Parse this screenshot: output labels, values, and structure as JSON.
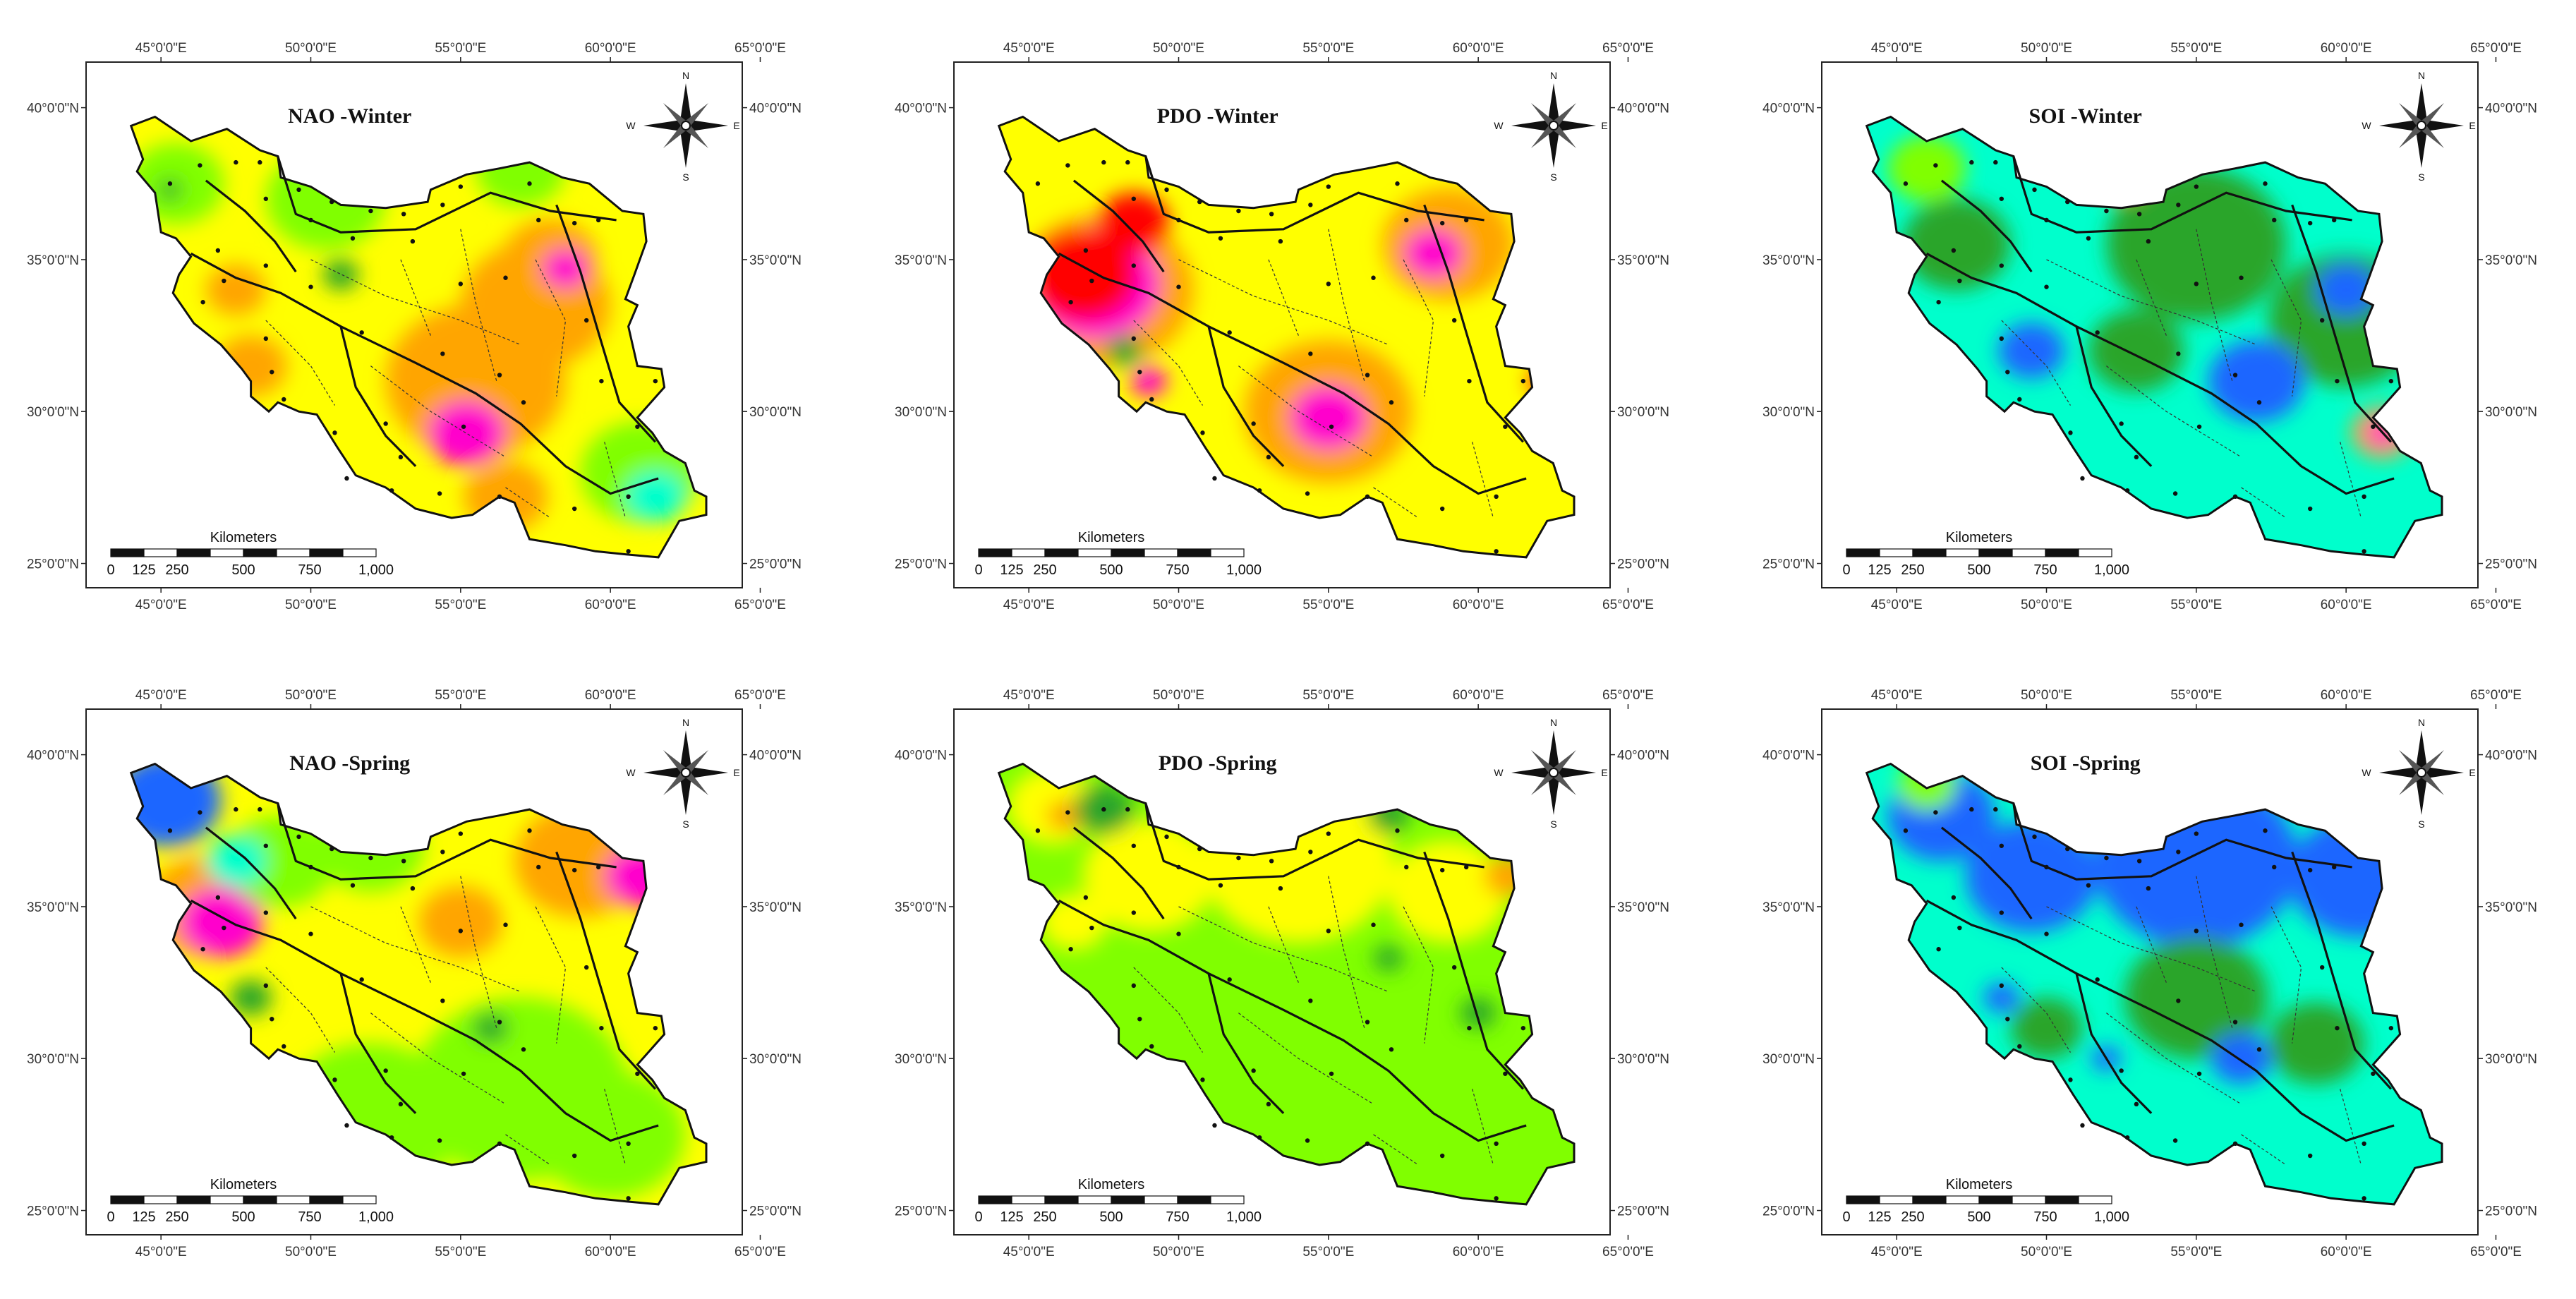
{
  "map_data": {
    "type": "choropleth-maps",
    "region": "Iran",
    "lon_ticks": [
      "45°0'0\"E",
      "50°0'0\"E",
      "55°0'0\"E",
      "60°0'0\"E",
      "65°0'0\"E"
    ],
    "lat_ticks": [
      "40°0'0\"N",
      "35°0'0\"N",
      "30°0'0\"N",
      "25°0'0\"N"
    ],
    "scale_bar": {
      "unit": "Kilometers",
      "ticks": [
        "0",
        "125",
        "250",
        "500",
        "750",
        "1,000"
      ]
    },
    "north_arrow": {
      "N": "N",
      "E": "E",
      "S": "S",
      "W": "W"
    },
    "colors": {
      "red": "#ff0000",
      "magenta": "#ff00cc",
      "orange": "#ffa500",
      "yellow": "#ffff00",
      "light_green": "#80ff00",
      "green": "#2aa52a",
      "cyan": "#00ffcc",
      "blue": "#1a66ff"
    },
    "panels": [
      {
        "title": "NAO -Winter",
        "base_color": "#ffff00",
        "blobs": [
          {
            "lon": 55.5,
            "lat": 31.0,
            "r": 3.0,
            "c": "#ffa500"
          },
          {
            "lon": 57.5,
            "lat": 33.5,
            "r": 2.5,
            "c": "#ffa500"
          },
          {
            "lon": 58.0,
            "lat": 35.0,
            "r": 1.6,
            "c": "#ffa500"
          },
          {
            "lon": 55.2,
            "lat": 29.3,
            "r": 1.3,
            "c": "#ff00cc"
          },
          {
            "lon": 58.5,
            "lat": 34.7,
            "r": 0.8,
            "c": "#ff00cc"
          },
          {
            "lon": 56.5,
            "lat": 27.2,
            "r": 1.4,
            "c": "#ffa500"
          },
          {
            "lon": 47.5,
            "lat": 34.0,
            "r": 1.0,
            "c": "#ffa500"
          },
          {
            "lon": 48.0,
            "lat": 31.5,
            "r": 1.2,
            "c": "#ffa500"
          },
          {
            "lon": 45.5,
            "lat": 37.5,
            "r": 1.6,
            "c": "#80ff00"
          },
          {
            "lon": 50.5,
            "lat": 37.0,
            "r": 2.0,
            "c": "#80ff00"
          },
          {
            "lon": 57.0,
            "lat": 38.0,
            "r": 1.5,
            "c": "#80ff00"
          },
          {
            "lon": 61.0,
            "lat": 28.0,
            "r": 2.0,
            "c": "#80ff00"
          },
          {
            "lon": 61.5,
            "lat": 27.2,
            "r": 1.0,
            "c": "#00ffcc"
          },
          {
            "lon": 51.0,
            "lat": 34.5,
            "r": 0.6,
            "c": "#2aa52a"
          },
          {
            "lon": 45.3,
            "lat": 37.3,
            "r": 0.4,
            "c": "#2aa52a"
          }
        ]
      },
      {
        "title": "PDO -Winter",
        "base_color": "#ffff00",
        "blobs": [
          {
            "lon": 47.5,
            "lat": 34.0,
            "r": 3.0,
            "c": "#ffa500"
          },
          {
            "lon": 55.0,
            "lat": 30.0,
            "r": 2.8,
            "c": "#ffa500"
          },
          {
            "lon": 59.0,
            "lat": 35.5,
            "r": 2.2,
            "c": "#ffa500"
          },
          {
            "lon": 47.2,
            "lat": 34.2,
            "r": 2.2,
            "c": "#ff00cc"
          },
          {
            "lon": 46.8,
            "lat": 34.5,
            "r": 1.8,
            "c": "#ff0000"
          },
          {
            "lon": 48.5,
            "lat": 36.2,
            "r": 1.2,
            "c": "#ff0000"
          },
          {
            "lon": 55.0,
            "lat": 29.8,
            "r": 1.3,
            "c": "#ff00cc"
          },
          {
            "lon": 58.5,
            "lat": 35.2,
            "r": 1.0,
            "c": "#ff00cc"
          },
          {
            "lon": 49.0,
            "lat": 31.0,
            "r": 0.6,
            "c": "#ff00cc"
          },
          {
            "lon": 62.2,
            "lat": 31.0,
            "r": 0.5,
            "c": "#ff0000"
          },
          {
            "lon": 48.2,
            "lat": 32.0,
            "r": 0.6,
            "c": "#2aa52a"
          }
        ]
      },
      {
        "title": "SOI -Winter",
        "base_color": "#00ffcc",
        "blobs": [
          {
            "lon": 55.0,
            "lat": 35.5,
            "r": 3.0,
            "c": "#2aa52a"
          },
          {
            "lon": 60.0,
            "lat": 33.0,
            "r": 2.6,
            "c": "#2aa52a"
          },
          {
            "lon": 47.0,
            "lat": 35.5,
            "r": 1.8,
            "c": "#2aa52a"
          },
          {
            "lon": 53.0,
            "lat": 32.0,
            "r": 1.6,
            "c": "#2aa52a"
          },
          {
            "lon": 57.0,
            "lat": 31.0,
            "r": 1.6,
            "c": "#1a66ff"
          },
          {
            "lon": 49.5,
            "lat": 32.0,
            "r": 1.1,
            "c": "#1a66ff"
          },
          {
            "lon": 60.0,
            "lat": 34.0,
            "r": 1.0,
            "c": "#1a66ff"
          },
          {
            "lon": 61.2,
            "lat": 29.3,
            "r": 1.0,
            "c": "#ffa500"
          },
          {
            "lon": 61.2,
            "lat": 29.3,
            "r": 0.5,
            "c": "#ff00cc"
          },
          {
            "lon": 52.5,
            "lat": 37.8,
            "r": 0.9,
            "c": "#ffa500"
          },
          {
            "lon": 46.0,
            "lat": 38.0,
            "r": 1.3,
            "c": "#80ff00"
          }
        ]
      },
      {
        "title": "NAO -Spring",
        "base_color": "#ffff00",
        "blobs": [
          {
            "lon": 57.0,
            "lat": 29.0,
            "r": 3.6,
            "c": "#80ff00"
          },
          {
            "lon": 52.0,
            "lat": 28.0,
            "r": 3.0,
            "c": "#80ff00"
          },
          {
            "lon": 60.0,
            "lat": 27.5,
            "r": 2.5,
            "c": "#80ff00"
          },
          {
            "lon": 46.5,
            "lat": 35.0,
            "r": 2.0,
            "c": "#ffa500"
          },
          {
            "lon": 59.0,
            "lat": 36.5,
            "r": 2.2,
            "c": "#ffa500"
          },
          {
            "lon": 55.0,
            "lat": 34.5,
            "r": 1.4,
            "c": "#ffa500"
          },
          {
            "lon": 47.0,
            "lat": 34.5,
            "r": 1.4,
            "c": "#ff00cc"
          },
          {
            "lon": 61.0,
            "lat": 36.0,
            "r": 1.2,
            "c": "#ff00cc"
          },
          {
            "lon": 45.2,
            "lat": 38.5,
            "r": 1.8,
            "c": "#1a66ff"
          },
          {
            "lon": 49.0,
            "lat": 36.5,
            "r": 1.8,
            "c": "#80ff00"
          },
          {
            "lon": 52.0,
            "lat": 37.0,
            "r": 1.8,
            "c": "#80ff00"
          },
          {
            "lon": 47.5,
            "lat": 36.5,
            "r": 1.0,
            "c": "#00ffcc"
          },
          {
            "lon": 48.0,
            "lat": 32.0,
            "r": 0.7,
            "c": "#2aa52a"
          },
          {
            "lon": 56.0,
            "lat": 31.0,
            "r": 0.6,
            "c": "#2aa52a"
          }
        ]
      },
      {
        "title": "PDO -Spring",
        "base_color": "#80ff00",
        "blobs": [
          {
            "lon": 54.0,
            "lat": 36.5,
            "r": 3.2,
            "c": "#ffff00"
          },
          {
            "lon": 49.0,
            "lat": 36.0,
            "r": 2.2,
            "c": "#ffff00"
          },
          {
            "lon": 59.0,
            "lat": 35.5,
            "r": 2.0,
            "c": "#ffff00"
          },
          {
            "lon": 45.8,
            "lat": 38.3,
            "r": 1.5,
            "c": "#ffff00"
          },
          {
            "lon": 46.5,
            "lat": 34.5,
            "r": 1.1,
            "c": "#ffff00"
          },
          {
            "lon": 46.2,
            "lat": 38.0,
            "r": 0.6,
            "c": "#ffa500"
          },
          {
            "lon": 61.0,
            "lat": 36.0,
            "r": 0.8,
            "c": "#ffa500"
          },
          {
            "lon": 47.5,
            "lat": 38.2,
            "r": 1.0,
            "c": "#2aa52a"
          },
          {
            "lon": 57.0,
            "lat": 38.0,
            "r": 0.7,
            "c": "#2aa52a"
          },
          {
            "lon": 57.0,
            "lat": 33.3,
            "r": 0.5,
            "c": "#2aa52a"
          },
          {
            "lon": 60.0,
            "lat": 31.5,
            "r": 0.6,
            "c": "#2aa52a"
          }
        ]
      },
      {
        "title": "SOI -Spring",
        "base_color": "#00ffcc",
        "blobs": [
          {
            "lon": 55.0,
            "lat": 36.5,
            "r": 3.4,
            "c": "#1a66ff"
          },
          {
            "lon": 49.5,
            "lat": 36.0,
            "r": 2.2,
            "c": "#1a66ff"
          },
          {
            "lon": 60.5,
            "lat": 36.0,
            "r": 2.4,
            "c": "#1a66ff"
          },
          {
            "lon": 46.5,
            "lat": 38.0,
            "r": 1.8,
            "c": "#1a66ff"
          },
          {
            "lon": 55.0,
            "lat": 32.0,
            "r": 2.4,
            "c": "#2aa52a"
          },
          {
            "lon": 59.0,
            "lat": 30.5,
            "r": 1.6,
            "c": "#2aa52a"
          },
          {
            "lon": 50.0,
            "lat": 31.0,
            "r": 1.2,
            "c": "#2aa52a"
          },
          {
            "lon": 56.5,
            "lat": 30.0,
            "r": 1.0,
            "c": "#1a66ff"
          },
          {
            "lon": 48.5,
            "lat": 32.0,
            "r": 0.6,
            "c": "#1a66ff"
          },
          {
            "lon": 46.0,
            "lat": 39.0,
            "r": 1.0,
            "c": "#80ff00"
          },
          {
            "lon": 52.0,
            "lat": 30.0,
            "r": 0.5,
            "c": "#1a66ff"
          }
        ]
      }
    ]
  }
}
